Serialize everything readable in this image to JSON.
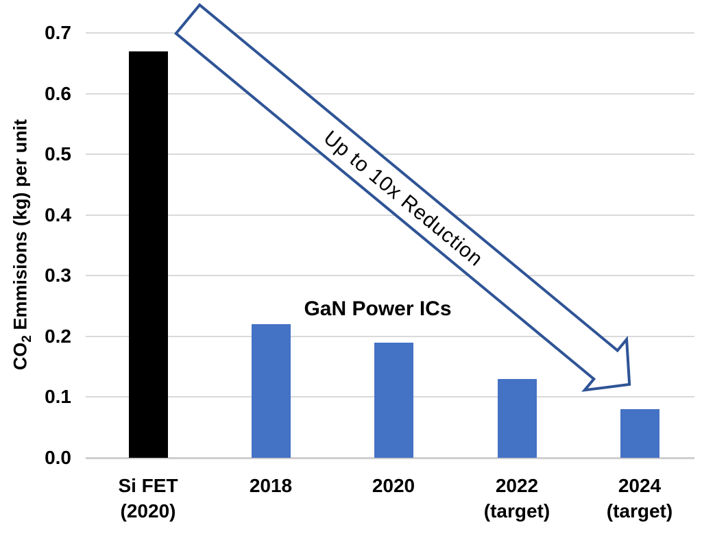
{
  "chart_data": {
    "type": "bar",
    "title": "",
    "xlabel": "",
    "ylabel": "CO2 Emmisions (kg) per unit",
    "ylabel_parts": {
      "prefix": "CO",
      "sub": "2",
      "rest": " Emmisions (kg) per unit"
    },
    "categories": [
      "Si FET (2020)",
      "2018",
      "2020",
      "2022 (target)",
      "2024 (target)"
    ],
    "category_lines": [
      [
        "Si FET",
        "(2020)"
      ],
      [
        "2018"
      ],
      [
        "2020"
      ],
      [
        "2022",
        "(target)"
      ],
      [
        "2024",
        "(target)"
      ]
    ],
    "values": [
      0.67,
      0.22,
      0.19,
      0.13,
      0.08
    ],
    "bar_colors": [
      "#000000",
      "#4472c4",
      "#4472c4",
      "#4472c4",
      "#4472c4"
    ],
    "ylim": [
      0.0,
      0.7
    ],
    "yticks": [
      "0.7",
      "0.6",
      "0.5",
      "0.4",
      "0.3",
      "0.2",
      "0.1",
      "0.0"
    ],
    "grid": true,
    "legend": false,
    "annotations": [
      {
        "text": "GaN Power ICs",
        "type": "series-label"
      },
      {
        "text": "Up to 10x Reduction",
        "type": "arrow-label"
      }
    ],
    "colors": {
      "gan_bar_blue": "#4472c4",
      "si_bar_black": "#000000",
      "arrow_outline_blue": "#2f5496",
      "gridline_gray": "#d9d9d9",
      "axis_line_gray": "#cfcdcd"
    }
  }
}
